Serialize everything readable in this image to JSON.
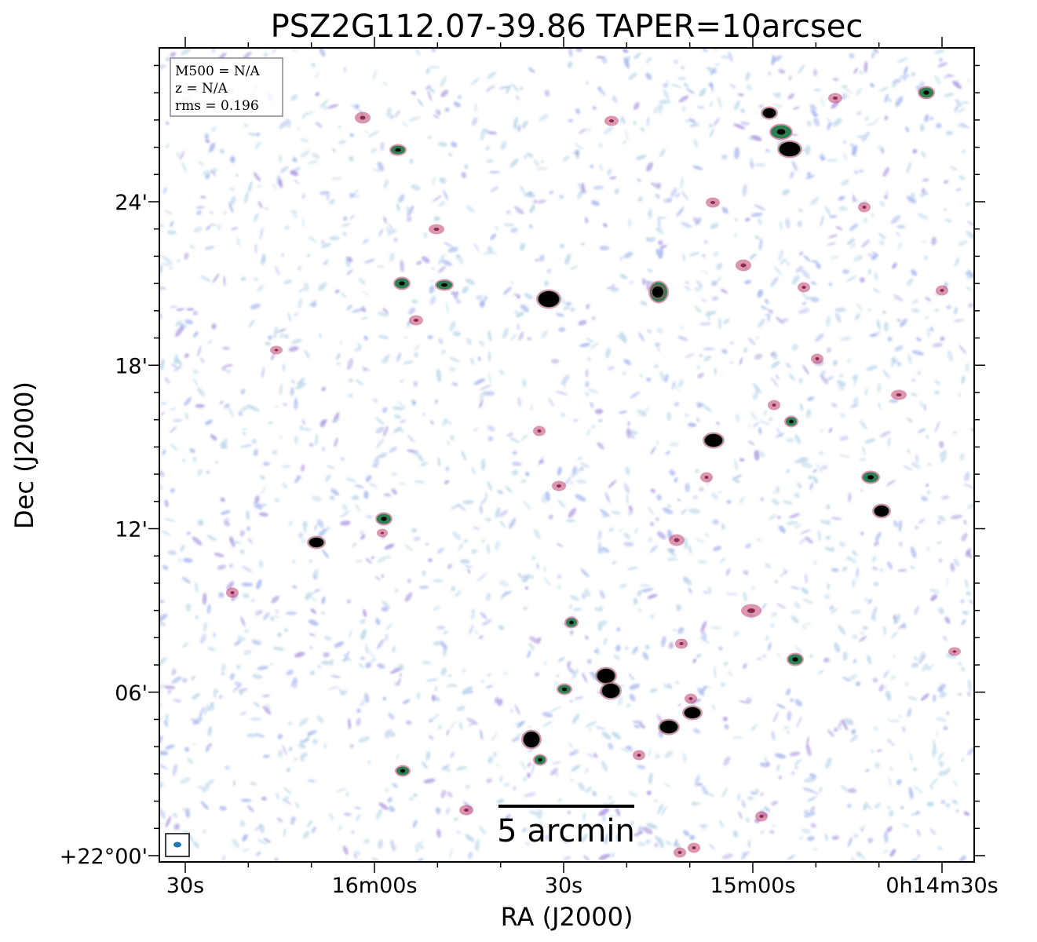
{
  "figure": {
    "title": "PSZ2G112.07-39.86 TAPER=10arcsec",
    "xlabel": "RA (J2000)",
    "ylabel": "Dec (J2000)",
    "info_box": [
      "M500 = N/A",
      "z = N/A",
      "rms = 0.196"
    ],
    "scalebar_label": "5 arcmin",
    "x_ticks": [
      {
        "label": "30s",
        "ra_sec": 990
      },
      {
        "label": "16m00s",
        "ra_sec": 960
      },
      {
        "label": "30s",
        "ra_sec": 930
      },
      {
        "label": "15m00s",
        "ra_sec": 900
      },
      {
        "label": "0h14m30s",
        "ra_sec": 870
      }
    ],
    "y_ticks": [
      {
        "label": "24'",
        "dec_arcmin": 24
      },
      {
        "label": "18'",
        "dec_arcmin": 18
      },
      {
        "label": "12'",
        "dec_arcmin": 12
      },
      {
        "label": "06'",
        "dec_arcmin": 6
      },
      {
        "label": "+22°00'",
        "dec_arcmin": 0
      }
    ],
    "colors": {
      "noise_light": "#bcd8ea",
      "noise_blue": "#a8b8ef",
      "noise_purple": "#b09ae0",
      "source_pink": "#c0406e",
      "source_green": "#2e8050",
      "source_core": "#000000",
      "beam": "#1f77b4"
    }
  }
}
